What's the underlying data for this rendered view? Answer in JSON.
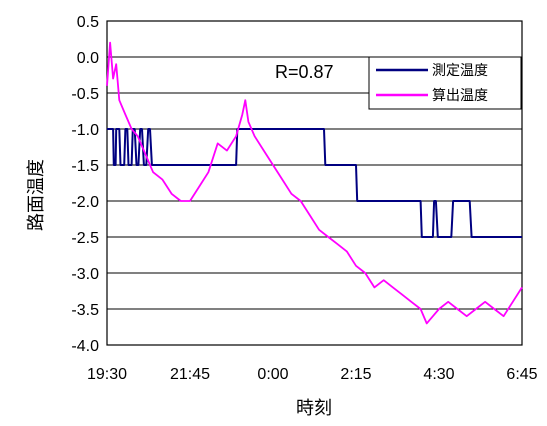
{
  "chart_data": {
    "type": "line",
    "xlabel": "時刻",
    "ylabel": "路面温度",
    "x_ticks": [
      "19:30",
      "21:45",
      "0:00",
      "2:15",
      "4:30",
      "6:45"
    ],
    "y_ticks": [
      "0.5",
      "0.0",
      "-0.5",
      "-1.0",
      "-1.5",
      "-2.0",
      "-2.5",
      "-3.0",
      "-3.5",
      "-4.0"
    ],
    "ylim": [
      -4.0,
      0.5
    ],
    "grid": "horizontal",
    "legend_position": "top-right",
    "annotation": "R=0.87",
    "series": [
      {
        "name": "測定温度",
        "color": "#000080",
        "x": [
          "19:30",
          "19:40",
          "19:41",
          "19:44",
          "19:45",
          "19:50",
          "19:52",
          "19:58",
          "20:00",
          "20:03",
          "20:05",
          "20:10",
          "20:12",
          "20:15",
          "20:18",
          "20:21",
          "20:24",
          "20:27",
          "20:30",
          "20:34",
          "20:37",
          "20:40",
          "20:43",
          "20:45",
          "23:00",
          "23:02",
          "1:23",
          "1:25",
          "2:15",
          "2:17",
          "4:00",
          "4:02",
          "4:20",
          "4:22",
          "4:25",
          "4:28",
          "4:50",
          "4:53",
          "5:20",
          "5:23",
          "5:30",
          "5:33",
          "6:45"
        ],
        "values": [
          -1.0,
          -1.0,
          -1.5,
          -1.5,
          -1.0,
          -1.0,
          -1.5,
          -1.5,
          -1.0,
          -1.0,
          -1.5,
          -1.5,
          -1.0,
          -1.0,
          -1.5,
          -1.5,
          -1.0,
          -1.0,
          -1.5,
          -1.5,
          -1.0,
          -1.0,
          -1.5,
          -1.5,
          -1.5,
          -1.0,
          -1.0,
          -1.5,
          -1.5,
          -2.0,
          -2.0,
          -2.5,
          -2.5,
          -2.0,
          -2.0,
          -2.5,
          -2.5,
          -2.0,
          -2.0,
          -2.5,
          -2.5,
          -2.5,
          -2.5
        ]
      },
      {
        "name": "算出温度",
        "color": "#ff00ff",
        "x": [
          "19:30",
          "19:35",
          "19:40",
          "19:45",
          "19:50",
          "20:00",
          "20:10",
          "20:20",
          "20:30",
          "20:45",
          "21:00",
          "21:15",
          "21:30",
          "21:45",
          "22:00",
          "22:15",
          "22:30",
          "22:45",
          "23:00",
          "23:10",
          "23:15",
          "23:20",
          "23:30",
          "23:45",
          "0:00",
          "0:15",
          "0:30",
          "0:45",
          "1:00",
          "1:15",
          "1:30",
          "1:45",
          "2:00",
          "2:15",
          "2:30",
          "2:45",
          "3:00",
          "3:15",
          "3:30",
          "3:45",
          "4:00",
          "4:10",
          "4:20",
          "4:30",
          "4:45",
          "5:00",
          "5:15",
          "5:30",
          "5:45",
          "6:00",
          "6:15",
          "6:30",
          "6:45"
        ],
        "values": [
          -0.4,
          0.2,
          -0.3,
          -0.1,
          -0.6,
          -0.8,
          -1.0,
          -1.1,
          -1.3,
          -1.6,
          -1.7,
          -1.9,
          -2.0,
          -2.0,
          -1.8,
          -1.6,
          -1.2,
          -1.3,
          -1.1,
          -0.8,
          -0.6,
          -0.9,
          -1.1,
          -1.3,
          -1.5,
          -1.7,
          -1.9,
          -2.0,
          -2.2,
          -2.4,
          -2.5,
          -2.6,
          -2.7,
          -2.9,
          -3.0,
          -3.2,
          -3.1,
          -3.2,
          -3.3,
          -3.4,
          -3.5,
          -3.7,
          -3.6,
          -3.5,
          -3.4,
          -3.5,
          -3.6,
          -3.5,
          -3.4,
          -3.5,
          -3.6,
          -3.4,
          -3.2
        ]
      }
    ]
  }
}
